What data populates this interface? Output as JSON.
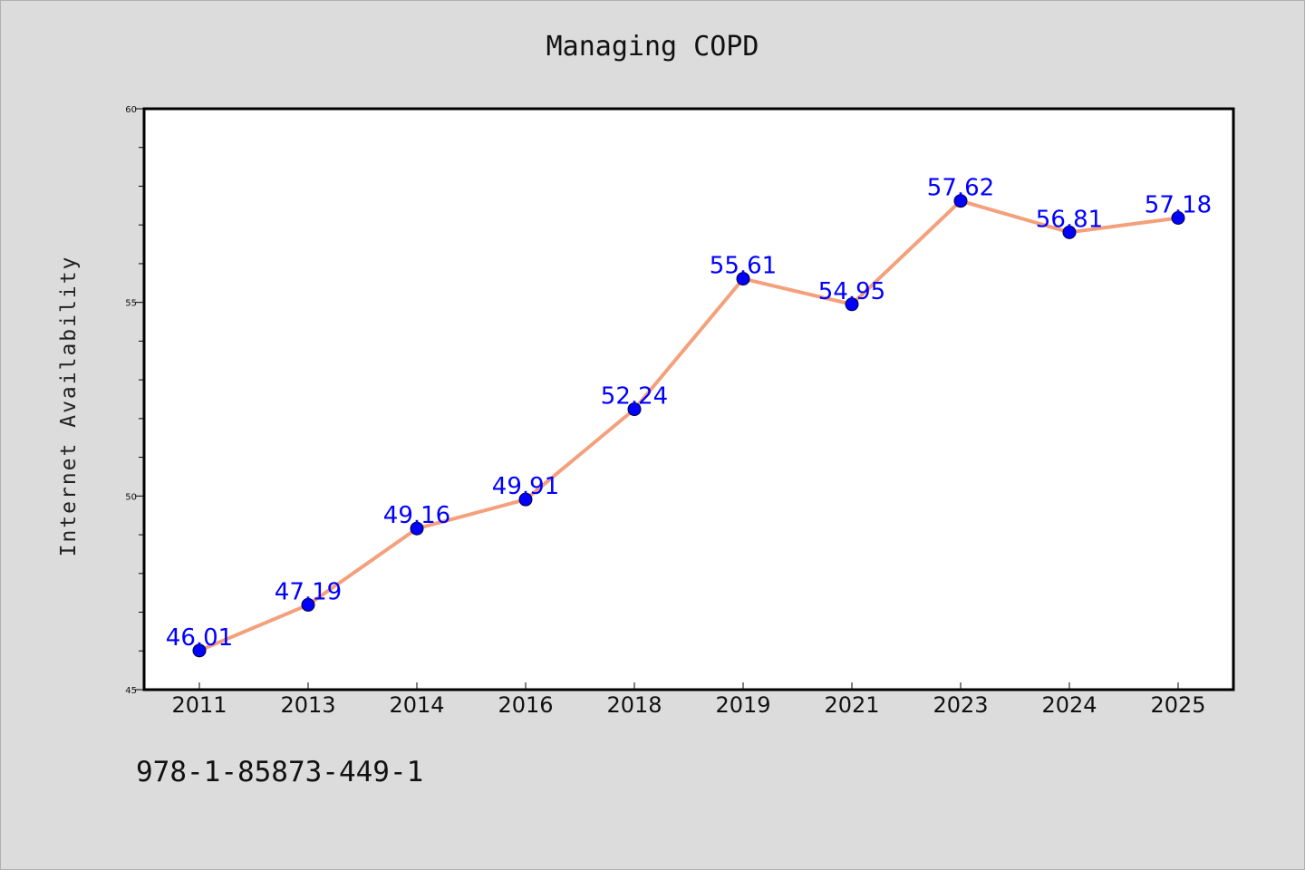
{
  "page": {
    "isbn": "978-1-85873-449-1"
  },
  "chart_data": {
    "type": "line",
    "title": "Managing COPD",
    "xlabel": "",
    "ylabel": "Internet Availability",
    "categories": [
      "2011",
      "2013",
      "2014",
      "2016",
      "2018",
      "2019",
      "2021",
      "2023",
      "2024",
      "2025"
    ],
    "series": [
      {
        "values": [
          46.01,
          47.19,
          49.16,
          49.91,
          52.24,
          55.61,
          54.95,
          57.62,
          56.81,
          57.18
        ],
        "labels": [
          "46.01",
          "47.19",
          "49.16",
          "49.91",
          "52.24",
          "55.61",
          "54.95",
          "57.62",
          "56.81",
          "57.18"
        ],
        "line_color": "#f4a07c",
        "marker_color": "#0000ff"
      }
    ],
    "ylim": [
      45,
      60
    ],
    "yticks": [
      "45",
      "50",
      "55",
      "60"
    ],
    "grid": false,
    "legend": "none",
    "colors": {
      "background": "#dcdcdc",
      "plot_area": "#ffffff",
      "label_text": "#0000ff"
    }
  }
}
